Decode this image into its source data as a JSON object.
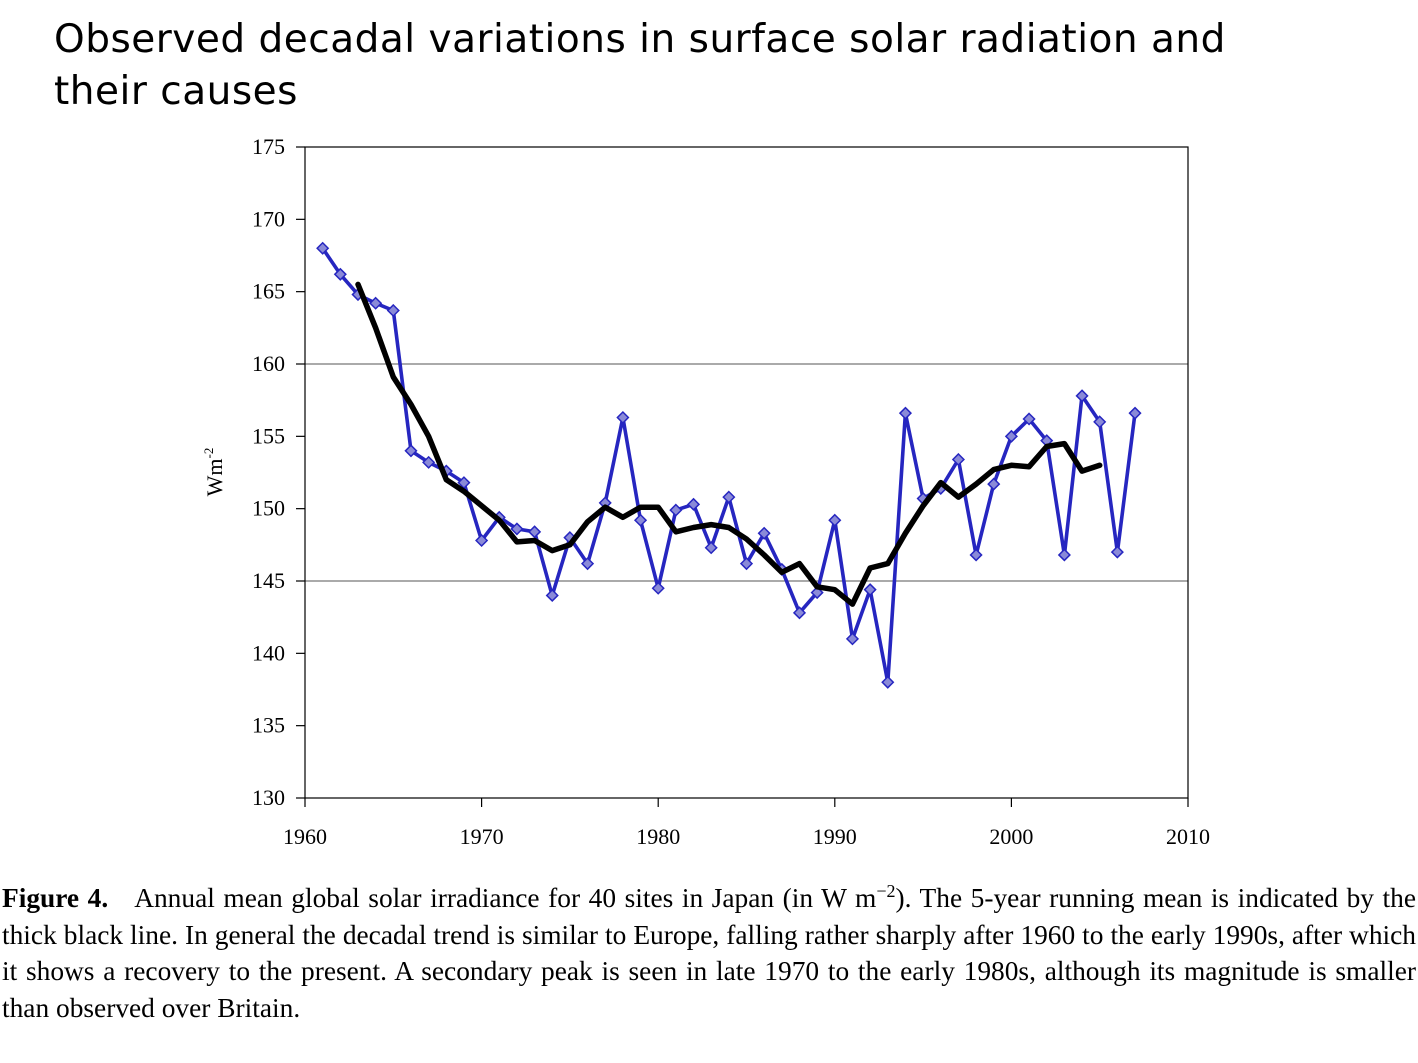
{
  "slide": {
    "title_line1": "Observed decadal variations in surface solar radiation and",
    "title_line2": "their causes"
  },
  "chart_data": {
    "type": "line",
    "title": "",
    "xlabel": "",
    "ylabel_base": "Wm",
    "ylabel_exp": "-2",
    "xlim": [
      1960,
      2010
    ],
    "ylim": [
      130,
      175
    ],
    "x_ticks": [
      1960,
      1970,
      1980,
      1990,
      2000,
      2010
    ],
    "y_ticks": [
      130,
      135,
      140,
      145,
      150,
      155,
      160,
      165,
      170,
      175
    ],
    "gridlines_y": [
      145,
      160
    ],
    "legend": "none",
    "series": [
      {
        "color": "#2626c0",
        "marker": "diamond",
        "x": [
          1961,
          1962,
          1963,
          1964,
          1965,
          1966,
          1967,
          1968,
          1969,
          1970,
          1971,
          1972,
          1973,
          1974,
          1975,
          1976,
          1977,
          1978,
          1979,
          1980,
          1981,
          1982,
          1983,
          1984,
          1985,
          1986,
          1987,
          1988,
          1989,
          1990,
          1991,
          1992,
          1993,
          1994,
          1995,
          1996,
          1997,
          1998,
          1999,
          2000,
          2001,
          2002,
          2003,
          2004,
          2005,
          2006,
          2007
        ],
        "y": [
          168,
          166.2,
          164.8,
          164.2,
          163.7,
          154,
          153.2,
          152.6,
          151.8,
          147.8,
          149.4,
          148.6,
          148.4,
          144,
          148,
          146.2,
          150.4,
          156.3,
          149.2,
          144.5,
          149.9,
          150.3,
          147.3,
          150.8,
          146.2,
          148.3,
          145.8,
          142.8,
          144.2,
          149.2,
          141,
          144.4,
          138,
          156.6,
          150.7,
          151.4,
          153.4,
          146.8,
          151.7,
          155,
          156.2,
          154.7,
          146.8,
          157.8,
          156,
          147,
          156.6
        ]
      },
      {
        "color": "#000000",
        "marker": "none",
        "x": [
          1963,
          1964,
          1965,
          1966,
          1967,
          1968,
          1969,
          1970,
          1971,
          1972,
          1973,
          1974,
          1975,
          1976,
          1977,
          1978,
          1979,
          1980,
          1981,
          1982,
          1983,
          1984,
          1985,
          1986,
          1987,
          1988,
          1989,
          1990,
          1991,
          1992,
          1993,
          1994,
          1995,
          1996,
          1997,
          1998,
          1999,
          2000,
          2001,
          2002,
          2003,
          2004,
          2005
        ],
        "y": [
          165.5,
          162.5,
          159.1,
          157.2,
          155,
          152,
          151.2,
          150.2,
          149.2,
          147.7,
          147.8,
          147.1,
          147.5,
          149.1,
          150.1,
          149.4,
          150.1,
          150.1,
          148.4,
          148.7,
          148.9,
          148.7,
          147.9,
          146.8,
          145.6,
          146.2,
          144.6,
          144.4,
          143.4,
          145.9,
          146.2,
          148.3,
          150.2,
          151.8,
          150.8,
          151.7,
          152.7,
          153,
          152.9,
          154.3,
          154.5,
          152.6,
          153
        ]
      }
    ]
  },
  "caption": {
    "label": "Figure 4.",
    "text_before_sup": "Annual mean global solar irradiance for 40 sites in Japan (in W m",
    "sup": "−2",
    "text_after_sup": "). The 5-year running mean is indicated by the thick black line. In general the decadal trend is similar to Europe, falling rather sharply after 1960 to the early 1990s, after which it shows a recovery to the present. A secondary peak is seen in late 1970 to the early 1980s, although its magnitude is smaller than observed over Britain."
  }
}
